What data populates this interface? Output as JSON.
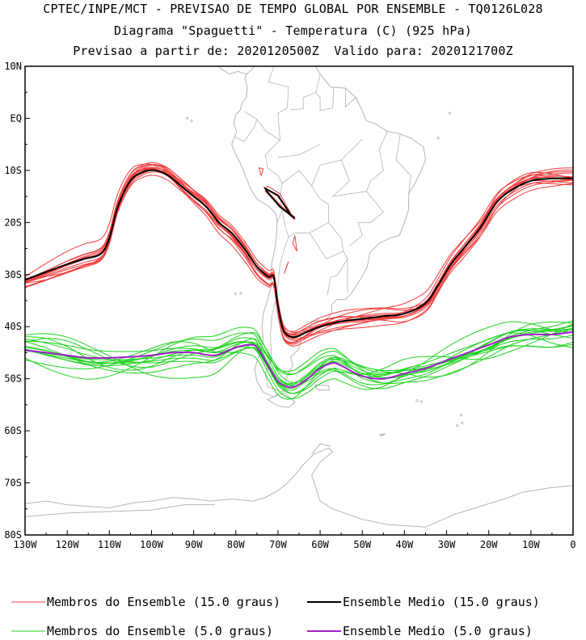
{
  "chart_data": {
    "type": "line",
    "title_lines": [
      "CPTEC/INPE/MCT - PREVISAO DE TEMPO GLOBAL POR ENSEMBLE - TQ0126L028",
      "Diagrama \"Spaguetti\" - Temperatura (C) (925 hPa)",
      "Previsao a partir de: 2020120500Z  Valido para: 2020121700Z"
    ],
    "xlim": [
      -130,
      0
    ],
    "ylim": [
      -80,
      10
    ],
    "x_ticks": [
      {
        "value": -130,
        "label": "130W"
      },
      {
        "value": -120,
        "label": "120W"
      },
      {
        "value": -110,
        "label": "110W"
      },
      {
        "value": -100,
        "label": "100W"
      },
      {
        "value": -90,
        "label": "90W"
      },
      {
        "value": -80,
        "label": "80W"
      },
      {
        "value": -70,
        "label": "70W"
      },
      {
        "value": -60,
        "label": "60W"
      },
      {
        "value": -50,
        "label": "50W"
      },
      {
        "value": -40,
        "label": "40W"
      },
      {
        "value": -30,
        "label": "30W"
      },
      {
        "value": -20,
        "label": "20W"
      },
      {
        "value": -10,
        "label": "10W"
      },
      {
        "value": 0,
        "label": "0"
      }
    ],
    "y_ticks": [
      {
        "value": 10,
        "label": "10N"
      },
      {
        "value": 0,
        "label": "EQ"
      },
      {
        "value": -10,
        "label": "10S"
      },
      {
        "value": -20,
        "label": "20S"
      },
      {
        "value": -30,
        "label": "30S"
      },
      {
        "value": -40,
        "label": "40S"
      },
      {
        "value": -50,
        "label": "50S"
      },
      {
        "value": -60,
        "label": "60S"
      },
      {
        "value": -70,
        "label": "70S"
      },
      {
        "value": -80,
        "label": "80S"
      }
    ],
    "grid": false,
    "colors": {
      "members_15": "#f03c3c",
      "mean_15": "#000000",
      "members_5": "#1ed21e",
      "mean_5": "#a020c8",
      "coastline": "#b4b4b4"
    },
    "series": [
      {
        "name": "Ensemble Medio (15.0 graus)",
        "kind": "mean_15",
        "x": [
          -130,
          -125,
          -120,
          -116,
          -112,
          -110,
          -108,
          -105,
          -102,
          -99,
          -96,
          -93,
          -90,
          -87,
          -84,
          -81,
          -78,
          -75,
          -73,
          -72,
          -71,
          -70,
          -69,
          -68,
          -66,
          -63,
          -60,
          -55,
          -50,
          -45,
          -40,
          -35,
          -32,
          -29,
          -26,
          -22,
          -18,
          -14,
          -10,
          -6,
          -3,
          0
        ],
        "y": [
          -31,
          -29.5,
          -28,
          -27,
          -26,
          -23,
          -17,
          -12,
          -10.3,
          -10,
          -11,
          -13,
          -15,
          -17,
          -20,
          -22,
          -25,
          -28.5,
          -30,
          -30.5,
          -30.5,
          -36,
          -40,
          -41.5,
          -42,
          -41,
          -40,
          -39,
          -38.5,
          -38,
          -37.5,
          -35.5,
          -32,
          -28,
          -25,
          -21,
          -16,
          -13.5,
          -12,
          -11.6,
          -11.5,
          -11.5
        ]
      },
      {
        "name": "Ensemble Medio (5.0 graus)",
        "kind": "mean_5",
        "x": [
          -130,
          -125,
          -120,
          -115,
          -110,
          -105,
          -100,
          -95,
          -90,
          -85,
          -80,
          -77,
          -75,
          -72,
          -70,
          -68,
          -66,
          -63,
          -60,
          -57,
          -55,
          -50,
          -45,
          -40,
          -35,
          -30,
          -25,
          -20,
          -15,
          -10,
          -5,
          0
        ],
        "y": [
          -44.5,
          -45,
          -45.5,
          -46,
          -46,
          -45.8,
          -45.5,
          -45,
          -45,
          -45.5,
          -44,
          -43.5,
          -44,
          -48,
          -50.5,
          -51.5,
          -51.5,
          -50,
          -48,
          -47,
          -47.5,
          -49.5,
          -50,
          -49,
          -48,
          -46.5,
          -45,
          -43.5,
          -42,
          -41.5,
          -41.5,
          -41
        ]
      }
    ],
    "legend": {
      "position": "bottom",
      "entries": [
        {
          "label": "Membros do Ensemble (15.0 graus)",
          "kind": "members_15"
        },
        {
          "label": "Ensemble Medio (15.0 graus)",
          "kind": "mean_15"
        },
        {
          "label": "Membros do Ensemble (5.0 graus)",
          "kind": "members_5"
        },
        {
          "label": "Ensemble Medio (5.0 graus)",
          "kind": "mean_5"
        }
      ]
    }
  }
}
